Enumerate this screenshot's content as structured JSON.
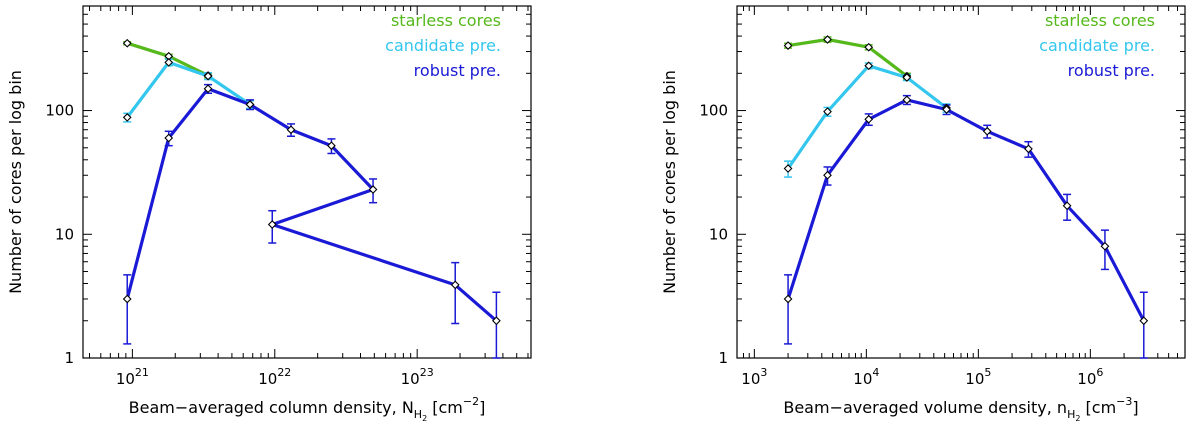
{
  "chart_data": [
    {
      "type": "line",
      "name": "panel-column-density",
      "xlabel": "Beam−averaged column density, N",
      "xlabel_sub": "H",
      "xlabel_subsub": "2",
      "xlabel_units_open": "[cm",
      "xlabel_units_exp": "−2",
      "xlabel_units_close": "]",
      "ylabel": "Number of cores per log bin",
      "xscale": "log",
      "yscale": "log",
      "xlim": [
        4.5e+20,
        6.3e+23
      ],
      "ylim": [
        1,
        700
      ],
      "x_ticks": [
        {
          "value": 1e+21,
          "base": "10",
          "exp": "21"
        },
        {
          "value": 1e+22,
          "base": "10",
          "exp": "22"
        },
        {
          "value": 1e+23,
          "base": "10",
          "exp": "23"
        }
      ],
      "y_ticks": [
        {
          "value": 1,
          "label": "1"
        },
        {
          "value": 10,
          "label": "10"
        },
        {
          "value": 100,
          "label": "100"
        }
      ],
      "series": [
        {
          "name": "starless cores",
          "color": "#55b81b",
          "x": [
            9.2e+20,
            1.8e+21,
            3.4e+21
          ],
          "y": [
            350,
            275,
            192
          ],
          "err": [
            10,
            10,
            8
          ]
        },
        {
          "name": "candidate pre.",
          "color": "#33c6ee",
          "x": [
            9.2e+20,
            1.8e+21,
            3.4e+21,
            6.7e+21
          ],
          "y": [
            88,
            245,
            190,
            112
          ],
          "err": [
            7,
            15,
            12,
            8
          ]
        },
        {
          "name": "robust pre.",
          "color": "#1a1ad6",
          "x": [
            9.2e+20,
            1.8e+21,
            3.4e+21,
            6.7e+21,
            1.3e+22,
            2.5e+22,
            4.9e+22,
            9.6e+21,
            1.85e+23,
            3.6e+23
          ],
          "y": [
            3,
            60,
            150,
            112,
            70,
            52,
            23,
            12,
            3.9,
            2
          ],
          "err": [
            1.7,
            8,
            12,
            10,
            8,
            7,
            5,
            3.5,
            2,
            1.4
          ]
        }
      ]
    },
    {
      "type": "line",
      "name": "panel-volume-density",
      "xlabel": "Beam−averaged volume density, n",
      "xlabel_sub": "H",
      "xlabel_subsub": "2",
      "xlabel_units_open": "[cm",
      "xlabel_units_exp": "−3",
      "xlabel_units_close": "]",
      "ylabel": "Number of cores per log bin",
      "xscale": "log",
      "yscale": "log",
      "xlim": [
        700,
        7000000
      ],
      "ylim": [
        1,
        700
      ],
      "x_ticks": [
        {
          "value": 1000,
          "base": "10",
          "exp": "3"
        },
        {
          "value": 10000,
          "base": "10",
          "exp": "4"
        },
        {
          "value": 100000,
          "base": "10",
          "exp": "5"
        },
        {
          "value": 1000000,
          "base": "10",
          "exp": "6"
        }
      ],
      "y_ticks": [
        {
          "value": 1,
          "label": "1"
        },
        {
          "value": 10,
          "label": "10"
        },
        {
          "value": 100,
          "label": "100"
        }
      ],
      "series": [
        {
          "name": "starless cores",
          "color": "#55b81b",
          "x": [
            2000,
            4500,
            10500,
            23000
          ],
          "y": [
            335,
            375,
            325,
            190
          ],
          "err": [
            15,
            18,
            15,
            10
          ]
        },
        {
          "name": "candidate pre.",
          "color": "#33c6ee",
          "x": [
            2000,
            4500,
            10500,
            23000,
            52000
          ],
          "y": [
            34,
            98,
            230,
            185,
            105
          ],
          "err": [
            5,
            8,
            12,
            10,
            8
          ]
        },
        {
          "name": "robust pre.",
          "color": "#1a1ad6",
          "x": [
            2000,
            4500,
            10500,
            23000,
            52000,
            120000,
            280000,
            620000,
            1350000,
            3000000
          ],
          "y": [
            3,
            30,
            85,
            122,
            102,
            68,
            49,
            17,
            8,
            2
          ],
          "err": [
            1.7,
            5,
            9,
            10,
            9,
            8,
            7,
            4,
            2.8,
            1.4
          ]
        }
      ]
    }
  ]
}
